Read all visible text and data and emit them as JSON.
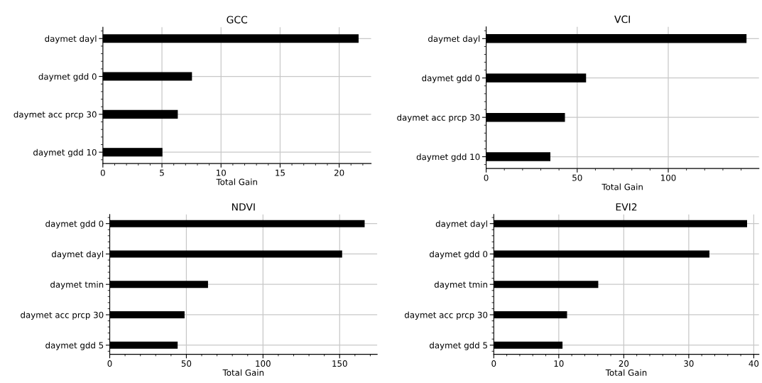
{
  "chart_data": [
    {
      "type": "bar",
      "orientation": "horizontal",
      "title": "GCC",
      "xlabel": "Total Gain",
      "categories": [
        "daymet dayl",
        "daymet gdd 0",
        "daymet acc prcp 30",
        "daymet gdd 10"
      ],
      "values": [
        21.6,
        7.5,
        6.3,
        5.0
      ],
      "color": "#000000",
      "xlim": [
        0,
        22.7
      ],
      "xticks": [
        0,
        5,
        10,
        15,
        20
      ],
      "grid": true
    },
    {
      "type": "bar",
      "orientation": "horizontal",
      "title": "VCI",
      "xlabel": "Total Gain",
      "categories": [
        "daymet dayl",
        "daymet gdd 0",
        "daymet acc prcp 30",
        "daymet gdd 10"
      ],
      "values": [
        142.7,
        54.6,
        43,
        35
      ],
      "color": "#000000",
      "xlim": [
        0,
        149.8
      ],
      "xticks": [
        0,
        50,
        100
      ],
      "grid": true
    },
    {
      "type": "bar",
      "orientation": "horizontal",
      "title": "NDVI",
      "xlabel": "Total Gain",
      "categories": [
        "daymet gdd 0",
        "daymet dayl",
        "daymet tmin",
        "daymet acc prcp 30",
        "daymet gdd 5"
      ],
      "values": [
        166,
        151.3,
        63.8,
        48.5,
        44
      ],
      "color": "#000000",
      "xlim": [
        0,
        174.5
      ],
      "xticks": [
        0,
        50,
        100,
        150
      ],
      "grid": true
    },
    {
      "type": "bar",
      "orientation": "horizontal",
      "title": "EVI2",
      "xlabel": "Total Gain",
      "categories": [
        "daymet dayl",
        "daymet gdd 0",
        "daymet tmin",
        "daymet acc prcp 30",
        "daymet gdd 5"
      ],
      "values": [
        38.9,
        33.1,
        16.0,
        11.2,
        10.5
      ],
      "color": "#000000",
      "xlim": [
        0,
        40.8
      ],
      "xticks": [
        0,
        10,
        20,
        30,
        40
      ],
      "grid": true
    }
  ]
}
